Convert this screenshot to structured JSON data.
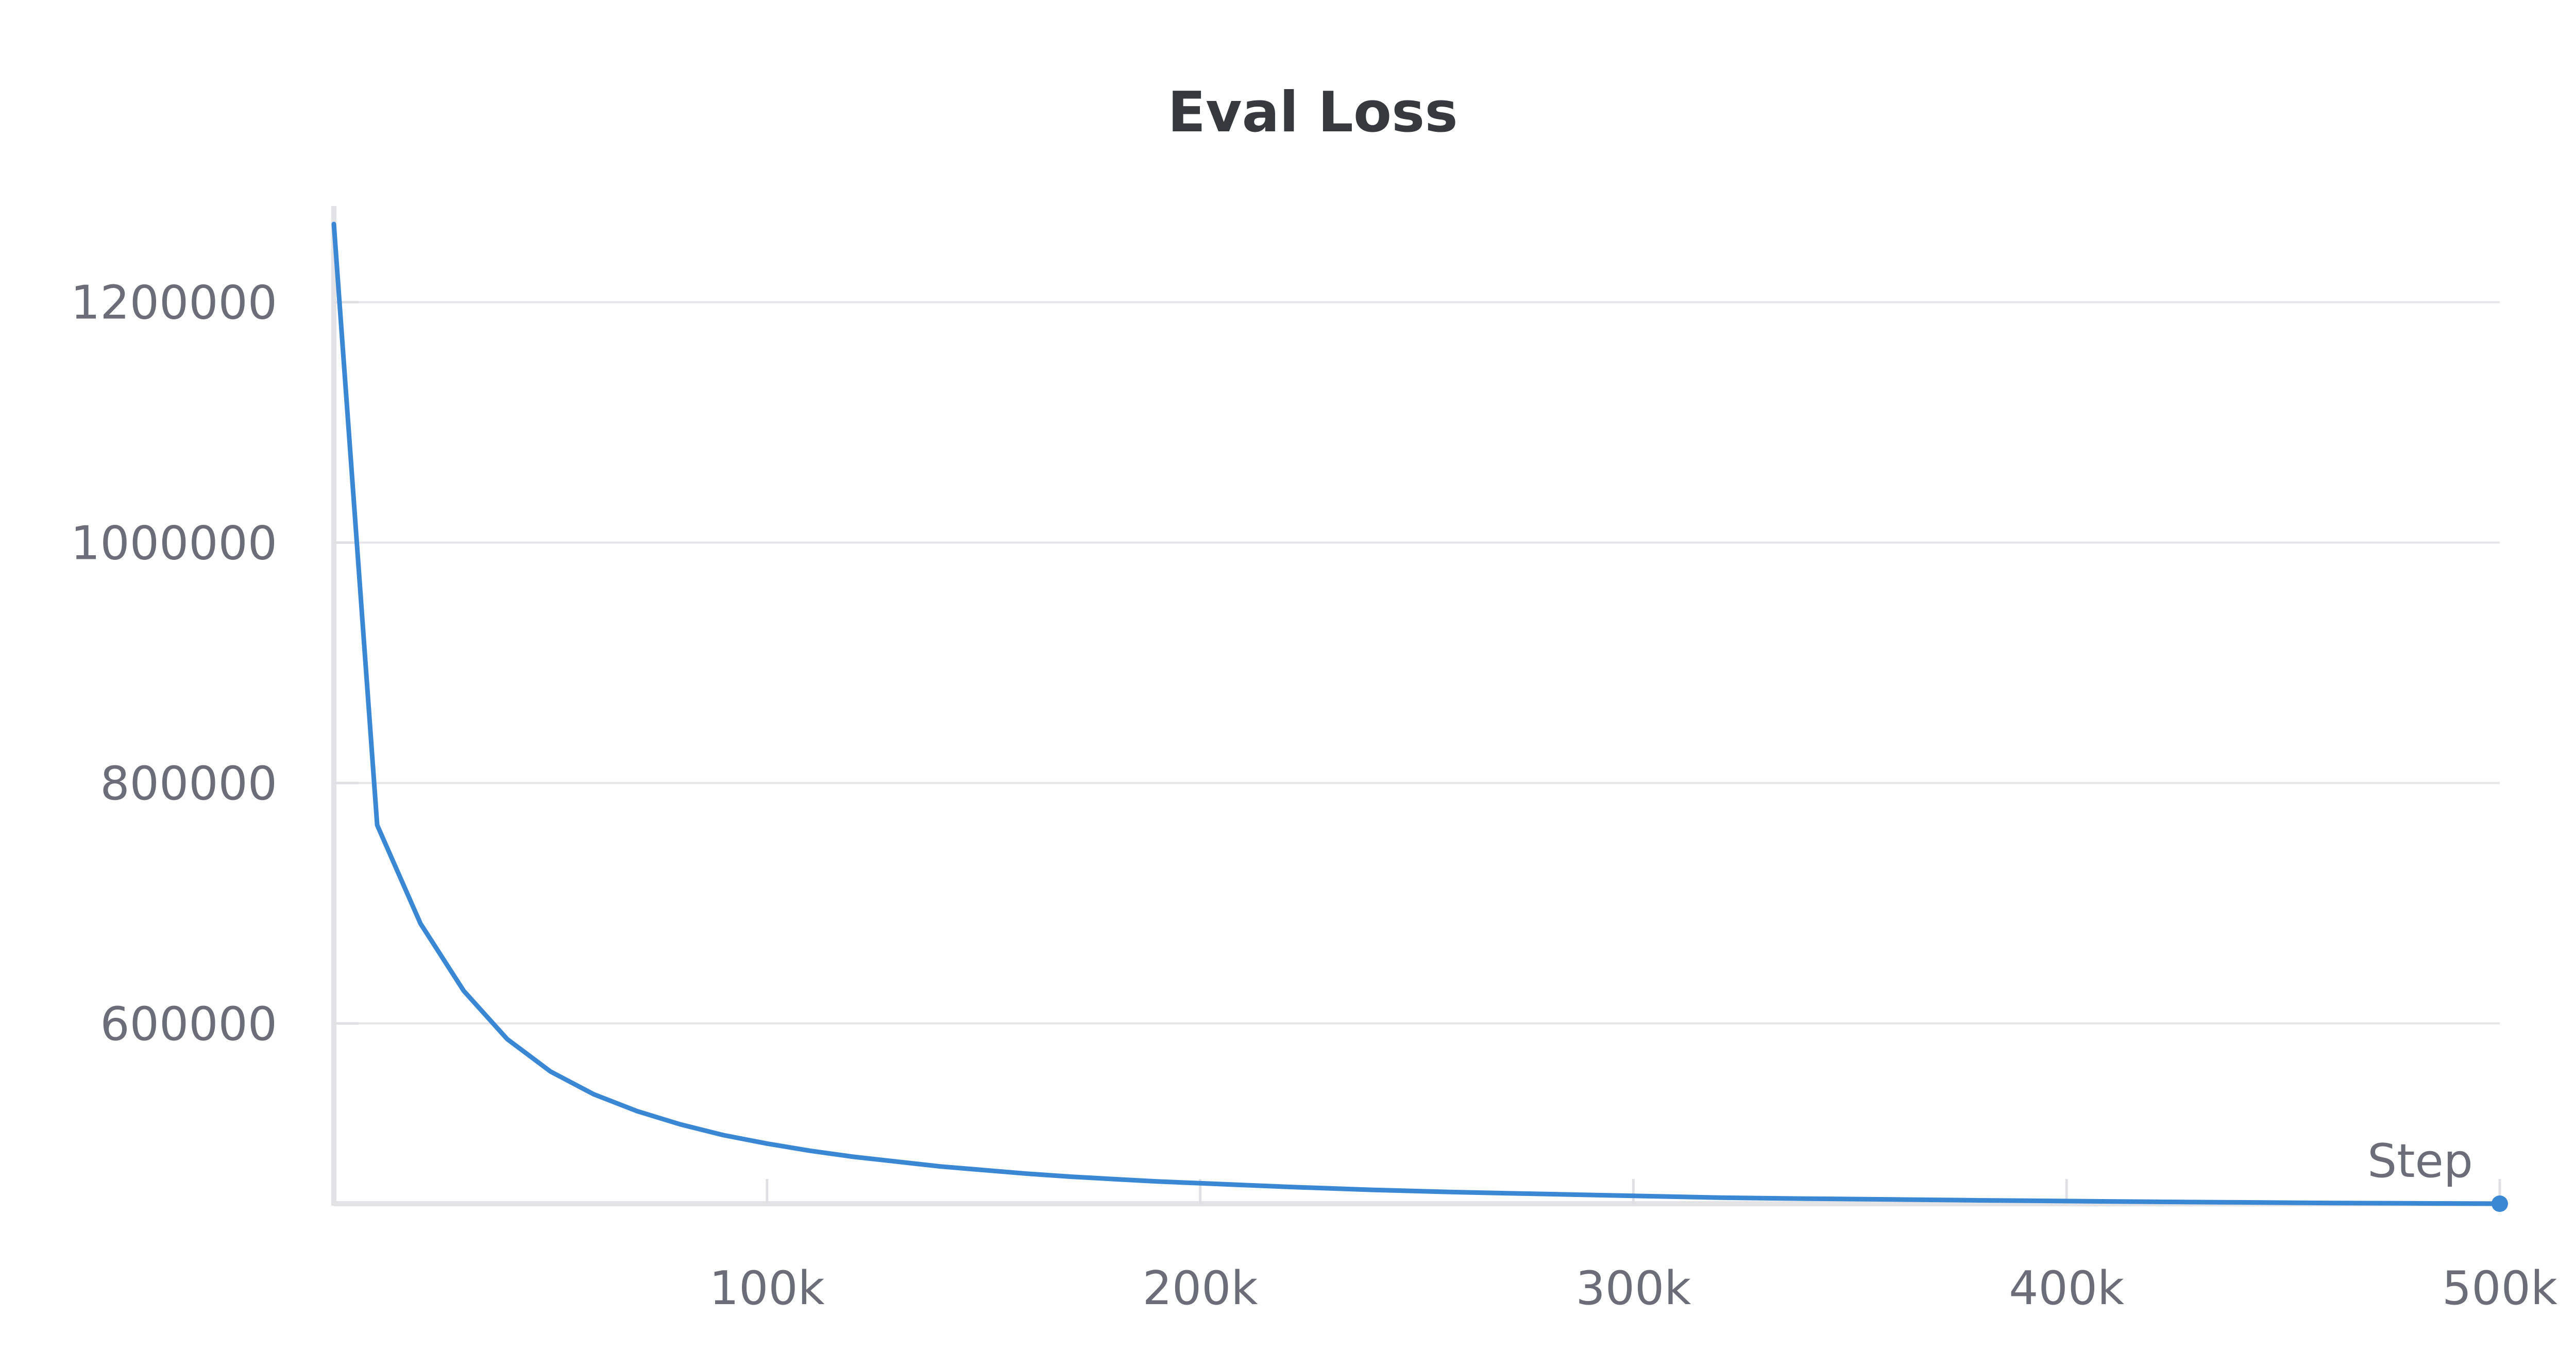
{
  "chart_data": {
    "type": "line",
    "title": "Eval Loss",
    "xlabel": "Step",
    "ylabel": "",
    "xlim": [
      0,
      500000
    ],
    "ylim": [
      450000,
      1280000
    ],
    "x_ticks": [
      100000,
      200000,
      300000,
      400000,
      500000
    ],
    "x_tick_labels": [
      "100k",
      "200k",
      "300k",
      "400k",
      "500k"
    ],
    "y_ticks": [
      600000,
      800000,
      1000000,
      1200000
    ],
    "y_tick_labels": [
      "600000",
      "800000",
      "1000000",
      "1200000"
    ],
    "grid": true,
    "legend": "none",
    "series": [
      {
        "color": "#3a87d4",
        "x": [
          0,
          10000,
          20000,
          30000,
          40000,
          50000,
          60000,
          70000,
          80000,
          90000,
          100000,
          110000,
          120000,
          130000,
          140000,
          150000,
          160000,
          170000,
          180000,
          190000,
          200000,
          220000,
          240000,
          260000,
          280000,
          300000,
          320000,
          340000,
          360000,
          380000,
          400000,
          420000,
          440000,
          460000,
          480000,
          500000
        ],
        "values": [
          1265000,
          765000,
          683000,
          627000,
          587000,
          560000,
          541000,
          527000,
          516000,
          507000,
          500000,
          494000,
          489000,
          485000,
          481000,
          478000,
          475000,
          472500,
          470500,
          468500,
          467000,
          464000,
          461500,
          459500,
          458000,
          456500,
          455000,
          454200,
          453500,
          452800,
          452200,
          451600,
          451100,
          450600,
          450300,
          450000
        ]
      }
    ]
  }
}
